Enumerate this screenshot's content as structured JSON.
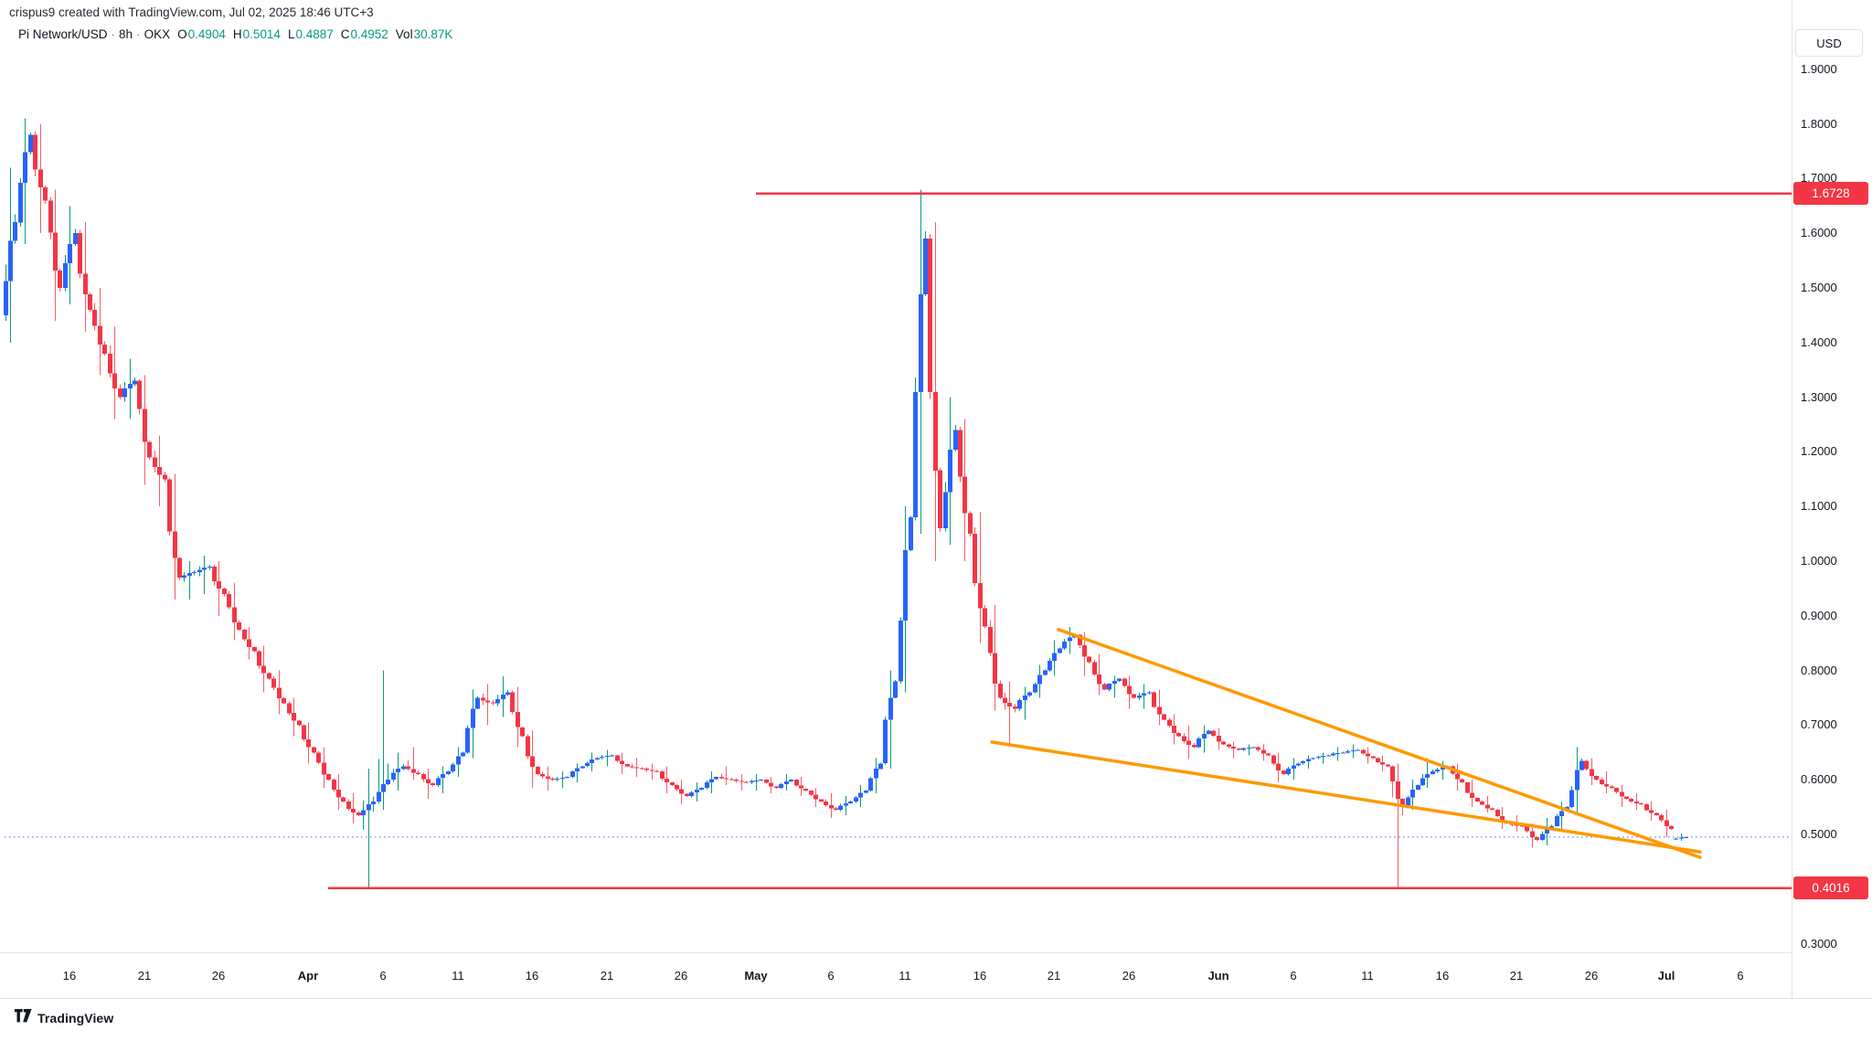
{
  "watermark": {
    "text": "crispus9 created with TradingView.com, Jul 02, 2025 18:46 UTC+3"
  },
  "legend": {
    "symbol": "Pi Network/USD",
    "interval": "8h",
    "exchange": "OKX",
    "separator": "·",
    "items": [
      {
        "k": "O",
        "v": "0.4904"
      },
      {
        "k": "H",
        "v": "0.5014"
      },
      {
        "k": "L",
        "v": "0.4887"
      },
      {
        "k": "C",
        "v": "0.4952"
      },
      {
        "k": "Vol",
        "v": "30.87K"
      }
    ]
  },
  "colors": {
    "up_body": "#2962FF",
    "up_wick": "#089981",
    "down_body": "#F23645",
    "down_wick": "#F23645",
    "value_text": "#089981",
    "trendline": "#FF9800",
    "level_line": "#F23645",
    "current_price_line": "#2962FF",
    "axis_text": "#131722",
    "axis_border": "#E0E3EB"
  },
  "price_axis": {
    "currency": "USD",
    "ticks": [
      {
        "t": "1.9000",
        "v": 1.9
      },
      {
        "t": "1.8000",
        "v": 1.8
      },
      {
        "t": "1.7000",
        "v": 1.7
      },
      {
        "t": "1.6000",
        "v": 1.6
      },
      {
        "t": "1.5000",
        "v": 1.5
      },
      {
        "t": "1.4000",
        "v": 1.4
      },
      {
        "t": "1.3000",
        "v": 1.3
      },
      {
        "t": "1.2000",
        "v": 1.2
      },
      {
        "t": "1.1000",
        "v": 1.1
      },
      {
        "t": "1.0000",
        "v": 1.0
      },
      {
        "t": "0.9000",
        "v": 0.9
      },
      {
        "t": "0.8000",
        "v": 0.8
      },
      {
        "t": "0.7000",
        "v": 0.7
      },
      {
        "t": "0.6000",
        "v": 0.6
      },
      {
        "t": "0.5000",
        "v": 0.5
      },
      {
        "t": "0.3000",
        "v": 0.3
      }
    ]
  },
  "time_axis": {
    "labels": [
      {
        "t": "16",
        "d": 4
      },
      {
        "t": "21",
        "d": 9
      },
      {
        "t": "26",
        "d": 14
      },
      {
        "t": "Apr",
        "d": 20,
        "b": 1
      },
      {
        "t": "6",
        "d": 25
      },
      {
        "t": "11",
        "d": 30
      },
      {
        "t": "16",
        "d": 35
      },
      {
        "t": "21",
        "d": 40
      },
      {
        "t": "26",
        "d": 45
      },
      {
        "t": "May",
        "d": 50,
        "b": 1
      },
      {
        "t": "6",
        "d": 55
      },
      {
        "t": "11",
        "d": 60
      },
      {
        "t": "16",
        "d": 65
      },
      {
        "t": "21",
        "d": 70
      },
      {
        "t": "26",
        "d": 75
      },
      {
        "t": "Jun",
        "d": 81,
        "b": 1
      },
      {
        "t": "6",
        "d": 86
      },
      {
        "t": "11",
        "d": 91
      },
      {
        "t": "16",
        "d": 96
      },
      {
        "t": "21",
        "d": 101
      },
      {
        "t": "26",
        "d": 106
      },
      {
        "t": "Jul",
        "d": 111,
        "b": 1
      },
      {
        "t": "6",
        "d": 116
      }
    ]
  },
  "footer": {
    "logo_text": "TradingView"
  },
  "chart_data": {
    "type": "candlestick",
    "title": "Pi Network/USD 8h (OKX)",
    "ylabel": "USD",
    "ylim": [
      0.284,
      2.027
    ],
    "grid": false,
    "legend_position": "top-left",
    "levels": [
      {
        "label": "1.6728",
        "price": 1.6728,
        "from_day": 50
      },
      {
        "label": "0.4016",
        "price": 0.4016,
        "from_day": 21.3
      }
    ],
    "current_price": {
      "value": 0.4952,
      "style": "dotted-blue"
    },
    "trendlines": [
      {
        "name": "wedge-upper",
        "d1": 70.3,
        "p1": 0.875,
        "d2": 113.3,
        "p2": 0.458
      },
      {
        "name": "wedge-lower",
        "d1": 65.8,
        "p1": 0.669,
        "d2": 113.3,
        "p2": 0.468
      }
    ],
    "note": "daily OHLC approximated by visual reading; rendered as three 8h sub-bars per day",
    "candles": [
      [
        "Mar 12",
        1.45,
        1.72,
        1.4,
        1.62
      ],
      [
        "Mar 13",
        1.62,
        1.81,
        1.58,
        1.78
      ],
      [
        "Mar 14",
        1.78,
        1.8,
        1.6,
        1.66
      ],
      [
        "Mar 15",
        1.66,
        1.68,
        1.44,
        1.5
      ],
      [
        "Mar 16",
        1.5,
        1.65,
        1.47,
        1.6
      ],
      [
        "Mar 17",
        1.6,
        1.62,
        1.42,
        1.46
      ],
      [
        "Mar 18",
        1.46,
        1.5,
        1.34,
        1.38
      ],
      [
        "Mar 19",
        1.38,
        1.43,
        1.26,
        1.3
      ],
      [
        "Mar 20",
        1.3,
        1.37,
        1.26,
        1.33
      ],
      [
        "Mar 21",
        1.33,
        1.34,
        1.14,
        1.19
      ],
      [
        "Mar 22",
        1.19,
        1.23,
        1.1,
        1.15
      ],
      [
        "Mar 23",
        1.15,
        1.16,
        0.93,
        0.97
      ],
      [
        "Mar 24",
        0.97,
        1.0,
        0.93,
        0.98
      ],
      [
        "Mar 25",
        0.98,
        1.01,
        0.94,
        0.99
      ],
      [
        "Mar 26",
        0.99,
        1.0,
        0.9,
        0.94
      ],
      [
        "Mar 27",
        0.94,
        0.96,
        0.855,
        0.875
      ],
      [
        "Mar 28",
        0.875,
        0.88,
        0.82,
        0.835
      ],
      [
        "Mar 29",
        0.835,
        0.845,
        0.76,
        0.785
      ],
      [
        "Mar 30",
        0.785,
        0.8,
        0.72,
        0.74
      ],
      [
        "Mar 31",
        0.74,
        0.75,
        0.68,
        0.7
      ],
      [
        "Apr 1",
        0.7,
        0.705,
        0.63,
        0.65
      ],
      [
        "Apr 2",
        0.65,
        0.66,
        0.585,
        0.6
      ],
      [
        "Apr 3",
        0.6,
        0.61,
        0.545,
        0.56
      ],
      [
        "Apr 4",
        0.56,
        0.575,
        0.52,
        0.535
      ],
      [
        "Apr 5",
        0.535,
        0.62,
        0.402,
        0.56
      ],
      [
        "Apr 6",
        0.56,
        0.8,
        0.545,
        0.6
      ],
      [
        "Apr 7",
        0.6,
        0.65,
        0.58,
        0.625
      ],
      [
        "Apr 8",
        0.625,
        0.66,
        0.6,
        0.61
      ],
      [
        "Apr 9",
        0.61,
        0.62,
        0.565,
        0.59
      ],
      [
        "Apr 10",
        0.59,
        0.625,
        0.575,
        0.615
      ],
      [
        "Apr 11",
        0.615,
        0.66,
        0.605,
        0.65
      ],
      [
        "Apr 12",
        0.65,
        0.765,
        0.64,
        0.75
      ],
      [
        "Apr 13",
        0.75,
        0.775,
        0.7,
        0.74
      ],
      [
        "Apr 14",
        0.74,
        0.789,
        0.715,
        0.76
      ],
      [
        "Apr 15",
        0.76,
        0.77,
        0.66,
        0.68
      ],
      [
        "Apr 16",
        0.68,
        0.69,
        0.585,
        0.61
      ],
      [
        "Apr 17",
        0.61,
        0.625,
        0.58,
        0.6
      ],
      [
        "Apr 18",
        0.6,
        0.615,
        0.585,
        0.605
      ],
      [
        "Apr 19",
        0.605,
        0.63,
        0.595,
        0.625
      ],
      [
        "Apr 20",
        0.625,
        0.65,
        0.615,
        0.64
      ],
      [
        "Apr 21",
        0.64,
        0.655,
        0.625,
        0.645
      ],
      [
        "Apr 22",
        0.645,
        0.65,
        0.61,
        0.625
      ],
      [
        "Apr 23",
        0.625,
        0.64,
        0.605,
        0.62
      ],
      [
        "Apr 24",
        0.62,
        0.63,
        0.6,
        0.615
      ],
      [
        "Apr 25",
        0.615,
        0.625,
        0.575,
        0.59
      ],
      [
        "Apr 26",
        0.59,
        0.6,
        0.555,
        0.57
      ],
      [
        "Apr 27",
        0.57,
        0.595,
        0.56,
        0.585
      ],
      [
        "Apr 28",
        0.585,
        0.615,
        0.575,
        0.605
      ],
      [
        "Apr 29",
        0.605,
        0.625,
        0.59,
        0.6
      ],
      [
        "Apr 30",
        0.6,
        0.61,
        0.58,
        0.595
      ],
      [
        "May 1",
        0.595,
        0.61,
        0.58,
        0.6
      ],
      [
        "May 2",
        0.6,
        0.605,
        0.575,
        0.585
      ],
      [
        "May 3",
        0.585,
        0.61,
        0.58,
        0.6
      ],
      [
        "May 4",
        0.6,
        0.605,
        0.57,
        0.58
      ],
      [
        "May 5",
        0.58,
        0.585,
        0.55,
        0.56
      ],
      [
        "May 6",
        0.56,
        0.575,
        0.53,
        0.545
      ],
      [
        "May 7",
        0.545,
        0.57,
        0.535,
        0.56
      ],
      [
        "May 8",
        0.56,
        0.59,
        0.55,
        0.58
      ],
      [
        "May 9",
        0.58,
        0.64,
        0.575,
        0.63
      ],
      [
        "May 10",
        0.63,
        0.8,
        0.62,
        0.78
      ],
      [
        "May 11",
        0.78,
        1.1,
        0.76,
        1.08
      ],
      [
        "May 12",
        1.08,
        1.68,
        1.05,
        1.59
      ],
      [
        "May 13",
        1.59,
        1.62,
        1.0,
        1.06
      ],
      [
        "May 14",
        1.06,
        1.3,
        1.03,
        1.24
      ],
      [
        "May 15",
        1.24,
        1.26,
        1.0,
        1.05
      ],
      [
        "May 16",
        1.05,
        1.09,
        0.85,
        0.88
      ],
      [
        "May 17",
        0.88,
        0.92,
        0.727,
        0.75
      ],
      [
        "May 18",
        0.75,
        0.78,
        0.665,
        0.73
      ],
      [
        "May 19",
        0.73,
        0.77,
        0.71,
        0.76
      ],
      [
        "May 20",
        0.76,
        0.81,
        0.75,
        0.8
      ],
      [
        "May 21",
        0.8,
        0.855,
        0.79,
        0.84
      ],
      [
        "May 22",
        0.84,
        0.88,
        0.83,
        0.865
      ],
      [
        "May 23",
        0.865,
        0.87,
        0.79,
        0.815
      ],
      [
        "May 24",
        0.815,
        0.83,
        0.755,
        0.765
      ],
      [
        "May 25",
        0.765,
        0.79,
        0.75,
        0.785
      ],
      [
        "May 26",
        0.785,
        0.79,
        0.73,
        0.75
      ],
      [
        "May 27",
        0.75,
        0.775,
        0.73,
        0.76
      ],
      [
        "May 28",
        0.76,
        0.765,
        0.7,
        0.71
      ],
      [
        "May 29",
        0.71,
        0.72,
        0.665,
        0.68
      ],
      [
        "May 30",
        0.68,
        0.7,
        0.638,
        0.66
      ],
      [
        "May 31",
        0.66,
        0.7,
        0.65,
        0.69
      ],
      [
        "Jun 1",
        0.69,
        0.695,
        0.655,
        0.665
      ],
      [
        "Jun 2",
        0.665,
        0.67,
        0.64,
        0.655
      ],
      [
        "Jun 3",
        0.655,
        0.665,
        0.645,
        0.66
      ],
      [
        "Jun 4",
        0.66,
        0.665,
        0.635,
        0.645
      ],
      [
        "Jun 5",
        0.645,
        0.65,
        0.595,
        0.61
      ],
      [
        "Jun 6",
        0.61,
        0.64,
        0.6,
        0.63
      ],
      [
        "Jun 7",
        0.63,
        0.645,
        0.62,
        0.64
      ],
      [
        "Jun 8",
        0.64,
        0.65,
        0.63,
        0.645
      ],
      [
        "Jun 9",
        0.645,
        0.66,
        0.635,
        0.65
      ],
      [
        "Jun 10",
        0.65,
        0.665,
        0.64,
        0.655
      ],
      [
        "Jun 11",
        0.655,
        0.66,
        0.63,
        0.64
      ],
      [
        "Jun 12",
        0.64,
        0.645,
        0.615,
        0.625
      ],
      [
        "Jun 13",
        0.625,
        0.63,
        0.402,
        0.55
      ],
      [
        "Jun 14",
        0.55,
        0.6,
        0.545,
        0.59
      ],
      [
        "Jun 15",
        0.59,
        0.64,
        0.585,
        0.615
      ],
      [
        "Jun 16",
        0.615,
        0.635,
        0.6,
        0.625
      ],
      [
        "Jun 17",
        0.625,
        0.63,
        0.58,
        0.595
      ],
      [
        "Jun 18",
        0.595,
        0.6,
        0.55,
        0.56
      ],
      [
        "Jun 19",
        0.56,
        0.57,
        0.54,
        0.545
      ],
      [
        "Jun 20",
        0.545,
        0.55,
        0.51,
        0.52
      ],
      [
        "Jun 21",
        0.52,
        0.535,
        0.505,
        0.515
      ],
      [
        "Jun 22",
        0.515,
        0.52,
        0.477,
        0.49
      ],
      [
        "Jun 23",
        0.49,
        0.53,
        0.48,
        0.515
      ],
      [
        "Jun 24",
        0.515,
        0.56,
        0.51,
        0.55
      ],
      [
        "Jun 25",
        0.55,
        0.66,
        0.54,
        0.635
      ],
      [
        "Jun 26",
        0.635,
        0.64,
        0.59,
        0.6
      ],
      [
        "Jun 27",
        0.6,
        0.615,
        0.575,
        0.585
      ],
      [
        "Jun 28",
        0.585,
        0.59,
        0.55,
        0.565
      ],
      [
        "Jun 29",
        0.565,
        0.575,
        0.545,
        0.555
      ],
      [
        "Jun 30",
        0.555,
        0.56,
        0.525,
        0.535
      ],
      [
        "Jul 1",
        0.535,
        0.545,
        0.495,
        0.51
      ],
      [
        "Jul 2",
        0.4904,
        0.5014,
        0.4887,
        0.4952
      ]
    ]
  }
}
